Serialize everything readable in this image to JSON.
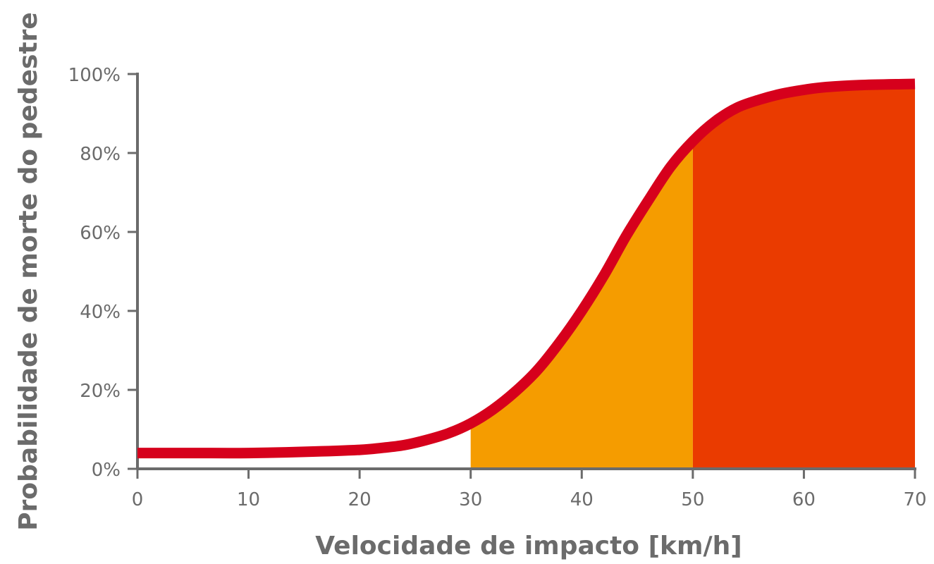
{
  "chart_data": {
    "type": "area",
    "title": "",
    "xlabel": "Velocidade de impacto [km/h]",
    "ylabel": "Probabilidade de morte do pedestre",
    "xlim": [
      0,
      70
    ],
    "ylim": [
      0,
      100
    ],
    "x_ticks": [
      0,
      10,
      20,
      30,
      40,
      50,
      60,
      70
    ],
    "x_tick_labels": [
      "0",
      "10",
      "20",
      "30",
      "40",
      "50",
      "60",
      "70"
    ],
    "y_ticks": [
      0,
      20,
      40,
      60,
      80,
      100
    ],
    "y_tick_labels": [
      "0%",
      "20%",
      "40%",
      "60%",
      "80%",
      "100%"
    ],
    "grid": false,
    "legend": "none",
    "series": [
      {
        "x": [
          0,
          5,
          10,
          15,
          20,
          22,
          24,
          26,
          28,
          30,
          32,
          34,
          36,
          38,
          40,
          42,
          44,
          46,
          48,
          50,
          52,
          54,
          56,
          58,
          60,
          62,
          65,
          70
        ],
        "y": [
          4,
          4,
          4,
          4.3,
          4.8,
          5.3,
          6,
          7.3,
          9,
          11.5,
          15,
          19.5,
          25,
          32,
          40,
          49,
          59,
          68,
          76.5,
          83,
          88,
          91.5,
          93.5,
          95,
          96,
          96.7,
          97.2,
          97.5
        ],
        "color": "#d6001c"
      }
    ],
    "bands": [
      {
        "x_start": 30,
        "x_end": 50,
        "color": "#f59c00"
      },
      {
        "x_start": 50,
        "x_end": 70,
        "color": "#ea3b00"
      }
    ]
  }
}
